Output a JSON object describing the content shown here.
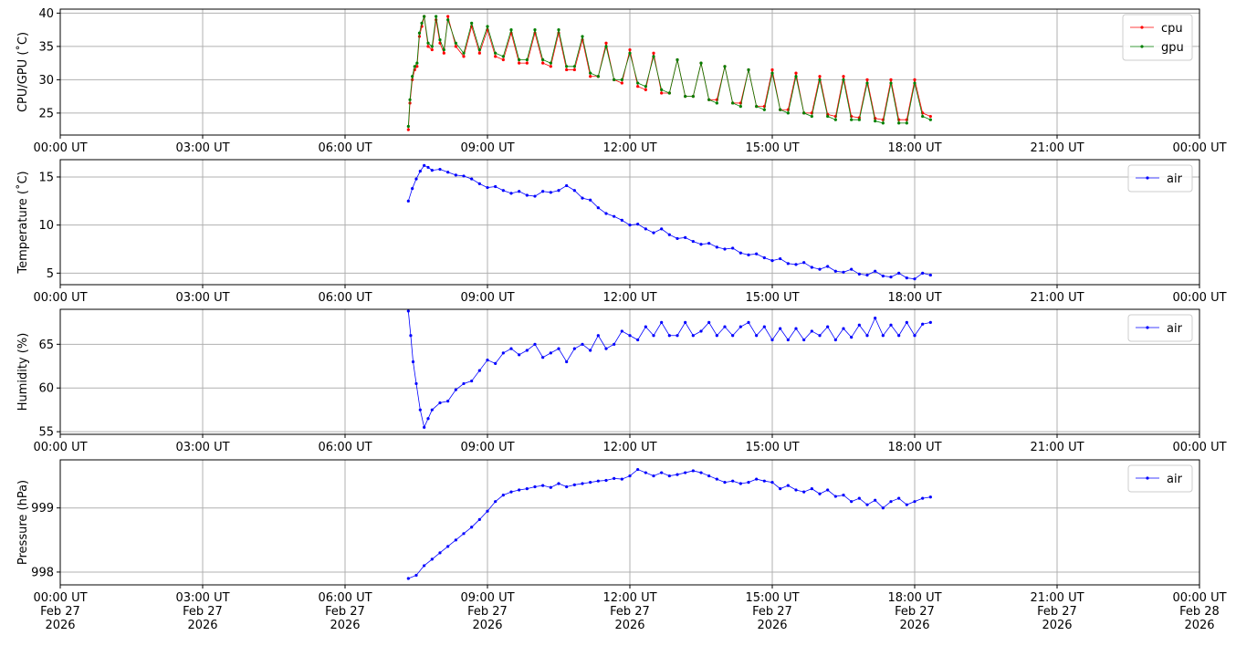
{
  "chart_data": [
    {
      "type": "line",
      "ylabel": "CPU/GPU (˚C)",
      "ylim": [
        21.7,
        40.6
      ],
      "yticks": [
        25,
        30,
        35,
        40
      ],
      "grid": true,
      "legend_position": "upper-right",
      "xlim": [
        "00:00",
        "24:00"
      ],
      "xticks": [
        "00:00 UT",
        "03:00 UT",
        "06:00 UT",
        "09:00 UT",
        "12:00 UT",
        "15:00 UT",
        "18:00 UT",
        "21:00 UT",
        "00:00 UT"
      ],
      "series": [
        {
          "name": "cpu",
          "color": "#ff0000",
          "x": [
            "07:20",
            "07:22",
            "07:25",
            "07:28",
            "07:31",
            "07:34",
            "07:37",
            "07:40",
            "07:45",
            "07:50",
            "07:55",
            "08:00",
            "08:05",
            "08:10",
            "08:20",
            "08:30",
            "08:40",
            "08:50",
            "09:00",
            "09:10",
            "09:20",
            "09:30",
            "09:40",
            "09:50",
            "10:00",
            "10:10",
            "10:20",
            "10:30",
            "10:40",
            "10:50",
            "11:00",
            "11:10",
            "11:20",
            "11:30",
            "11:40",
            "11:50",
            "12:00",
            "12:10",
            "12:20",
            "12:30",
            "12:40",
            "12:50",
            "13:00",
            "13:10",
            "13:20",
            "13:30",
            "13:40",
            "13:50",
            "14:00",
            "14:10",
            "14:20",
            "14:30",
            "14:40",
            "14:50",
            "15:00",
            "15:10",
            "15:20",
            "15:30",
            "15:40",
            "15:50",
            "16:00",
            "16:10",
            "16:20",
            "16:30",
            "16:40",
            "16:50",
            "17:00",
            "17:10",
            "17:20",
            "17:30",
            "17:40",
            "17:50",
            "18:00",
            "18:10",
            "18:20"
          ],
          "values": [
            22.5,
            26.5,
            30.0,
            31.5,
            32.0,
            36.5,
            38.0,
            39.5,
            35.0,
            34.5,
            39.0,
            35.5,
            34.0,
            39.5,
            35.0,
            33.5,
            38.0,
            34.0,
            37.5,
            33.5,
            33.0,
            37.0,
            32.5,
            32.5,
            37.0,
            32.5,
            32.0,
            37.0,
            31.5,
            31.5,
            36.0,
            30.5,
            30.5,
            35.5,
            30.0,
            29.5,
            34.5,
            29.0,
            28.5,
            34.0,
            28.0,
            28.0,
            33.0,
            27.5,
            27.5,
            32.5,
            27.0,
            27.0,
            32.0,
            26.5,
            26.5,
            31.5,
            26.0,
            26.0,
            31.5,
            25.5,
            25.5,
            31.0,
            25.0,
            25.0,
            30.5,
            24.8,
            24.5,
            30.5,
            24.5,
            24.3,
            30.0,
            24.2,
            24.0,
            30.0,
            24.0,
            24.0,
            30.0,
            25.0,
            24.5
          ]
        },
        {
          "name": "gpu",
          "color": "#008000",
          "x": [
            "07:20",
            "07:22",
            "07:25",
            "07:28",
            "07:31",
            "07:34",
            "07:37",
            "07:40",
            "07:45",
            "07:50",
            "07:55",
            "08:00",
            "08:05",
            "08:10",
            "08:20",
            "08:30",
            "08:40",
            "08:50",
            "09:00",
            "09:10",
            "09:20",
            "09:30",
            "09:40",
            "09:50",
            "10:00",
            "10:10",
            "10:20",
            "10:30",
            "10:40",
            "10:50",
            "11:00",
            "11:10",
            "11:20",
            "11:30",
            "11:40",
            "11:50",
            "12:00",
            "12:10",
            "12:20",
            "12:30",
            "12:40",
            "12:50",
            "13:00",
            "13:10",
            "13:20",
            "13:30",
            "13:40",
            "13:50",
            "14:00",
            "14:10",
            "14:20",
            "14:30",
            "14:40",
            "14:50",
            "15:00",
            "15:10",
            "15:20",
            "15:30",
            "15:40",
            "15:50",
            "16:00",
            "16:10",
            "16:20",
            "16:30",
            "16:40",
            "16:50",
            "17:00",
            "17:10",
            "17:20",
            "17:30",
            "17:40",
            "17:50",
            "18:00",
            "18:10",
            "18:20"
          ],
          "values": [
            23.0,
            27.0,
            30.5,
            32.0,
            32.5,
            37.0,
            38.5,
            39.5,
            35.5,
            35.0,
            39.5,
            36.0,
            34.5,
            39.0,
            35.5,
            34.0,
            38.5,
            34.5,
            38.0,
            34.0,
            33.5,
            37.5,
            33.0,
            33.0,
            37.5,
            33.0,
            32.5,
            37.5,
            32.0,
            32.0,
            36.5,
            31.0,
            30.5,
            35.0,
            30.0,
            30.0,
            34.0,
            29.5,
            29.0,
            33.5,
            28.5,
            28.0,
            33.0,
            27.5,
            27.5,
            32.5,
            27.0,
            26.5,
            32.0,
            26.5,
            26.0,
            31.5,
            26.0,
            25.5,
            31.0,
            25.5,
            25.0,
            30.5,
            25.0,
            24.5,
            30.0,
            24.5,
            24.0,
            30.0,
            24.0,
            24.0,
            29.5,
            23.8,
            23.5,
            29.5,
            23.5,
            23.5,
            29.5,
            24.5,
            24.0
          ]
        }
      ]
    },
    {
      "type": "line",
      "ylabel": "Temperature (˚C)",
      "ylim": [
        3.8,
        16.8
      ],
      "yticks": [
        5,
        10,
        15
      ],
      "grid": true,
      "legend_position": "upper-right",
      "xlim": [
        "00:00",
        "24:00"
      ],
      "xticks": [
        "00:00 UT",
        "03:00 UT",
        "06:00 UT",
        "09:00 UT",
        "12:00 UT",
        "15:00 UT",
        "18:00 UT",
        "21:00 UT",
        "00:00 UT"
      ],
      "series": [
        {
          "name": "air",
          "color": "#0000ff",
          "x": [
            "07:20",
            "07:25",
            "07:30",
            "07:35",
            "07:40",
            "07:45",
            "07:50",
            "08:00",
            "08:10",
            "08:20",
            "08:30",
            "08:40",
            "08:50",
            "09:00",
            "09:10",
            "09:20",
            "09:30",
            "09:40",
            "09:50",
            "10:00",
            "10:10",
            "10:20",
            "10:30",
            "10:40",
            "10:50",
            "11:00",
            "11:10",
            "11:20",
            "11:30",
            "11:40",
            "11:50",
            "12:00",
            "12:10",
            "12:20",
            "12:30",
            "12:40",
            "12:50",
            "13:00",
            "13:10",
            "13:20",
            "13:30",
            "13:40",
            "13:50",
            "14:00",
            "14:10",
            "14:20",
            "14:30",
            "14:40",
            "14:50",
            "15:00",
            "15:10",
            "15:20",
            "15:30",
            "15:40",
            "15:50",
            "16:00",
            "16:10",
            "16:20",
            "16:30",
            "16:40",
            "16:50",
            "17:00",
            "17:10",
            "17:20",
            "17:30",
            "17:40",
            "17:50",
            "18:00",
            "18:10",
            "18:20"
          ],
          "values": [
            12.5,
            13.8,
            14.8,
            15.6,
            16.2,
            16.0,
            15.7,
            15.8,
            15.5,
            15.2,
            15.1,
            14.8,
            14.3,
            13.9,
            14.0,
            13.6,
            13.3,
            13.5,
            13.1,
            13.0,
            13.5,
            13.4,
            13.6,
            14.1,
            13.6,
            12.8,
            12.6,
            11.8,
            11.2,
            10.9,
            10.5,
            10.0,
            10.1,
            9.6,
            9.2,
            9.6,
            9.0,
            8.6,
            8.7,
            8.3,
            8.0,
            8.1,
            7.7,
            7.5,
            7.6,
            7.1,
            6.9,
            7.0,
            6.6,
            6.3,
            6.5,
            6.0,
            5.9,
            6.1,
            5.6,
            5.4,
            5.7,
            5.2,
            5.1,
            5.4,
            4.9,
            4.8,
            5.2,
            4.7,
            4.6,
            5.0,
            4.5,
            4.4,
            5.0,
            4.8
          ]
        }
      ]
    },
    {
      "type": "line",
      "ylabel": "Humidity (%)",
      "ylim": [
        54.7,
        69.0
      ],
      "yticks": [
        55,
        60,
        65
      ],
      "grid": true,
      "legend_position": "upper-right",
      "xlim": [
        "00:00",
        "24:00"
      ],
      "xticks": [
        "00:00 UT",
        "03:00 UT",
        "06:00 UT",
        "09:00 UT",
        "12:00 UT",
        "15:00 UT",
        "18:00 UT",
        "21:00 UT",
        "00:00 UT"
      ],
      "series": [
        {
          "name": "air",
          "color": "#0000ff",
          "x": [
            "07:20",
            "07:23",
            "07:26",
            "07:30",
            "07:35",
            "07:40",
            "07:45",
            "07:50",
            "08:00",
            "08:10",
            "08:20",
            "08:30",
            "08:40",
            "08:50",
            "09:00",
            "09:10",
            "09:20",
            "09:30",
            "09:40",
            "09:50",
            "10:00",
            "10:10",
            "10:20",
            "10:30",
            "10:40",
            "10:50",
            "11:00",
            "11:10",
            "11:20",
            "11:30",
            "11:40",
            "11:50",
            "12:00",
            "12:10",
            "12:20",
            "12:30",
            "12:40",
            "12:50",
            "13:00",
            "13:10",
            "13:20",
            "13:30",
            "13:40",
            "13:50",
            "14:00",
            "14:10",
            "14:20",
            "14:30",
            "14:40",
            "14:50",
            "15:00",
            "15:10",
            "15:20",
            "15:30",
            "15:40",
            "15:50",
            "16:00",
            "16:10",
            "16:20",
            "16:30",
            "16:40",
            "16:50",
            "17:00",
            "17:10",
            "17:20",
            "17:30",
            "17:40",
            "17:50",
            "18:00",
            "18:10",
            "18:20"
          ],
          "values": [
            68.8,
            66.0,
            63.0,
            60.5,
            57.5,
            55.5,
            56.5,
            57.5,
            58.3,
            58.5,
            59.8,
            60.5,
            60.8,
            62.0,
            63.2,
            62.8,
            64.0,
            64.5,
            63.8,
            64.3,
            65.0,
            63.5,
            64.0,
            64.5,
            63.0,
            64.5,
            65.0,
            64.3,
            66.0,
            64.5,
            65.0,
            66.5,
            66.0,
            65.5,
            67.0,
            66.0,
            67.5,
            66.0,
            66.0,
            67.5,
            66.0,
            66.5,
            67.5,
            66.0,
            67.0,
            66.0,
            67.0,
            67.5,
            66.0,
            67.0,
            65.5,
            66.8,
            65.5,
            66.8,
            65.5,
            66.5,
            66.0,
            67.0,
            65.5,
            66.8,
            65.8,
            67.2,
            66.0,
            68.0,
            66.0,
            67.2,
            66.0,
            67.5,
            66.0,
            67.3,
            67.5
          ]
        }
      ]
    },
    {
      "type": "line",
      "ylabel": "Pressure (hPa)",
      "ylim": [
        997.8,
        999.75
      ],
      "yticks": [
        998,
        999
      ],
      "grid": true,
      "legend_position": "upper-right",
      "xlim": [
        "00:00",
        "24:00"
      ],
      "xticks": [
        "00:00 UT\nFeb 27\n2026",
        "03:00 UT\nFeb 27\n2026",
        "06:00 UT\nFeb 27\n2026",
        "09:00 UT\nFeb 27\n2026",
        "12:00 UT\nFeb 27\n2026",
        "15:00 UT\nFeb 27\n2026",
        "18:00 UT\nFeb 27\n2026",
        "21:00 UT\nFeb 27\n2026",
        "00:00 UT\nFeb 28\n2026"
      ],
      "series": [
        {
          "name": "air",
          "color": "#0000ff",
          "x": [
            "07:20",
            "07:30",
            "07:40",
            "07:50",
            "08:00",
            "08:10",
            "08:20",
            "08:30",
            "08:40",
            "08:50",
            "09:00",
            "09:10",
            "09:20",
            "09:30",
            "09:40",
            "09:50",
            "10:00",
            "10:10",
            "10:20",
            "10:30",
            "10:40",
            "10:50",
            "11:00",
            "11:10",
            "11:20",
            "11:30",
            "11:40",
            "11:50",
            "12:00",
            "12:10",
            "12:20",
            "12:30",
            "12:40",
            "12:50",
            "13:00",
            "13:10",
            "13:20",
            "13:30",
            "13:40",
            "13:50",
            "14:00",
            "14:10",
            "14:20",
            "14:30",
            "14:40",
            "14:50",
            "15:00",
            "15:10",
            "15:20",
            "15:30",
            "15:40",
            "15:50",
            "16:00",
            "16:10",
            "16:20",
            "16:30",
            "16:40",
            "16:50",
            "17:00",
            "17:10",
            "17:20",
            "17:30",
            "17:40",
            "17:50",
            "18:00",
            "18:10",
            "18:20"
          ],
          "values": [
            997.9,
            997.95,
            998.1,
            998.2,
            998.3,
            998.4,
            998.5,
            998.6,
            998.7,
            998.82,
            998.95,
            999.1,
            999.2,
            999.25,
            999.28,
            999.3,
            999.33,
            999.35,
            999.32,
            999.38,
            999.33,
            999.36,
            999.38,
            999.4,
            999.42,
            999.43,
            999.46,
            999.45,
            999.5,
            999.6,
            999.55,
            999.5,
            999.55,
            999.5,
            999.52,
            999.55,
            999.58,
            999.55,
            999.5,
            999.45,
            999.4,
            999.42,
            999.38,
            999.4,
            999.45,
            999.42,
            999.4,
            999.3,
            999.35,
            999.28,
            999.25,
            999.3,
            999.22,
            999.28,
            999.18,
            999.2,
            999.1,
            999.15,
            999.05,
            999.12,
            999.0,
            999.1,
            999.15,
            999.05,
            999.1,
            999.15,
            999.17
          ]
        }
      ]
    }
  ]
}
